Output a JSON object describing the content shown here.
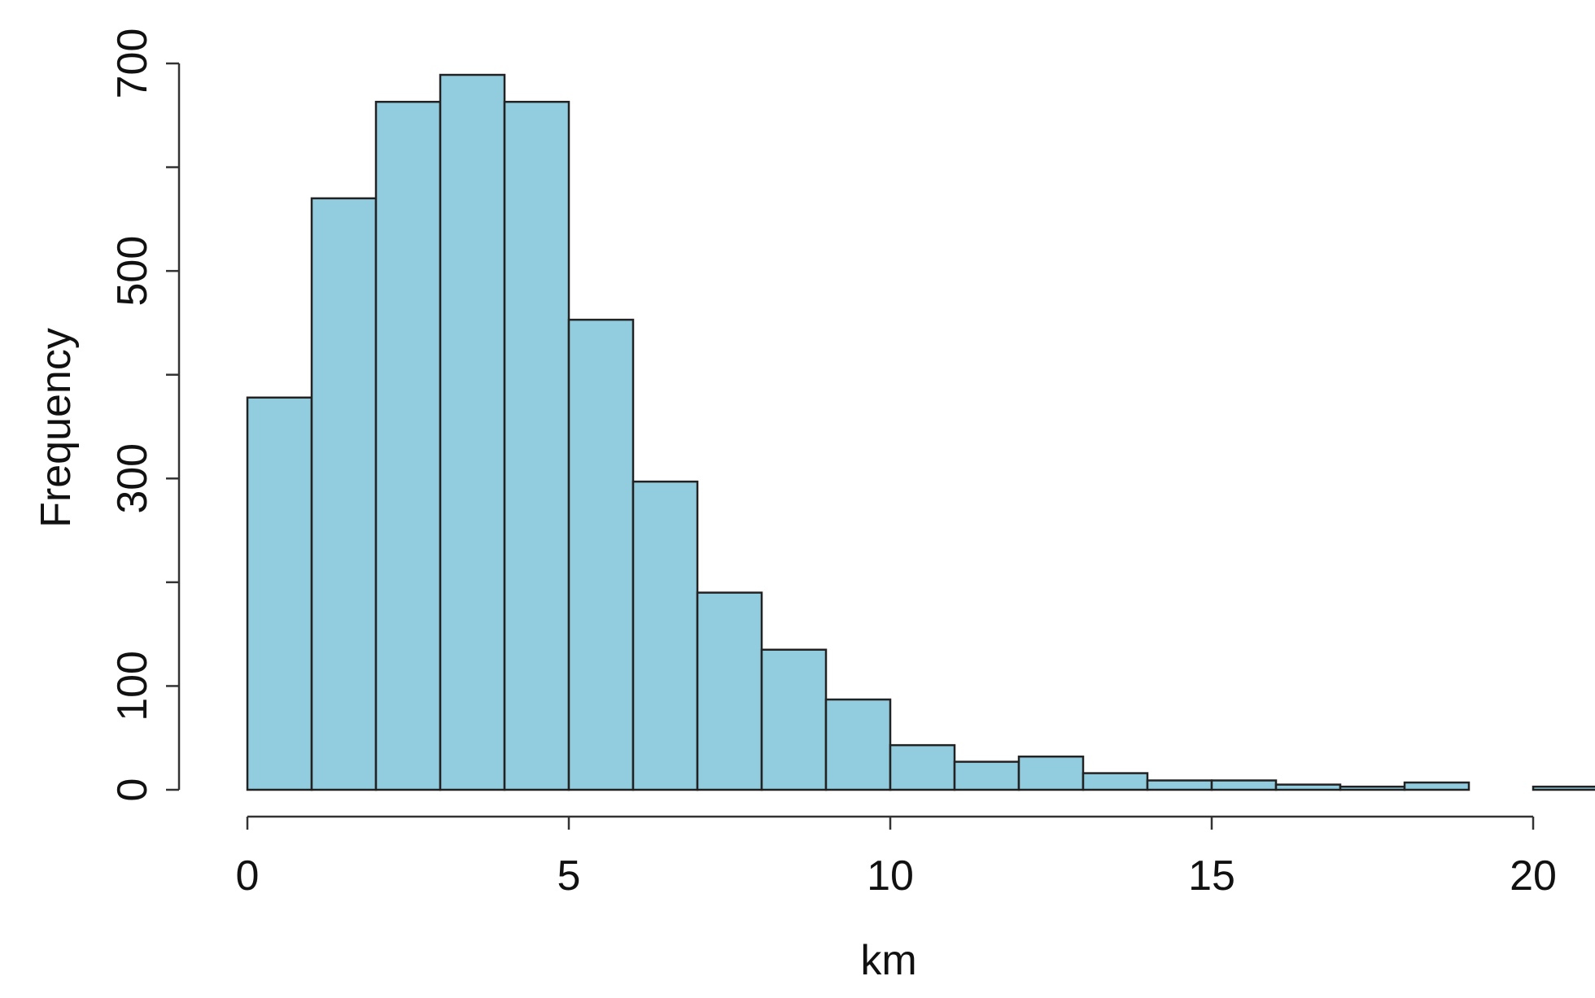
{
  "chart_data": {
    "type": "bar",
    "title": "",
    "xlabel": "km",
    "ylabel": "Frequency",
    "bin_edges": [
      0,
      1,
      2,
      3,
      4,
      5,
      6,
      7,
      8,
      9,
      10,
      11,
      12,
      13,
      14,
      15,
      16,
      17,
      18,
      19,
      20,
      21
    ],
    "values": [
      378,
      570,
      663,
      689,
      663,
      453,
      297,
      190,
      135,
      87,
      43,
      27,
      32,
      16,
      9,
      9,
      5,
      3,
      7,
      0,
      3
    ],
    "xlim": [
      0,
      21
    ],
    "ylim": [
      0,
      700
    ],
    "xticks": [
      0,
      5,
      10,
      15,
      20
    ],
    "xtick_labels": [
      "0",
      "5",
      "10",
      "15",
      "20"
    ],
    "yticks": [
      0,
      100,
      300,
      500,
      700
    ],
    "ytick_labels": [
      "0",
      "100",
      "300",
      "500",
      "700"
    ],
    "yticks_unlabeled": [
      200,
      400,
      600
    ],
    "grid": false,
    "bar_color": "#92cddf",
    "edge_color": "#222222"
  }
}
